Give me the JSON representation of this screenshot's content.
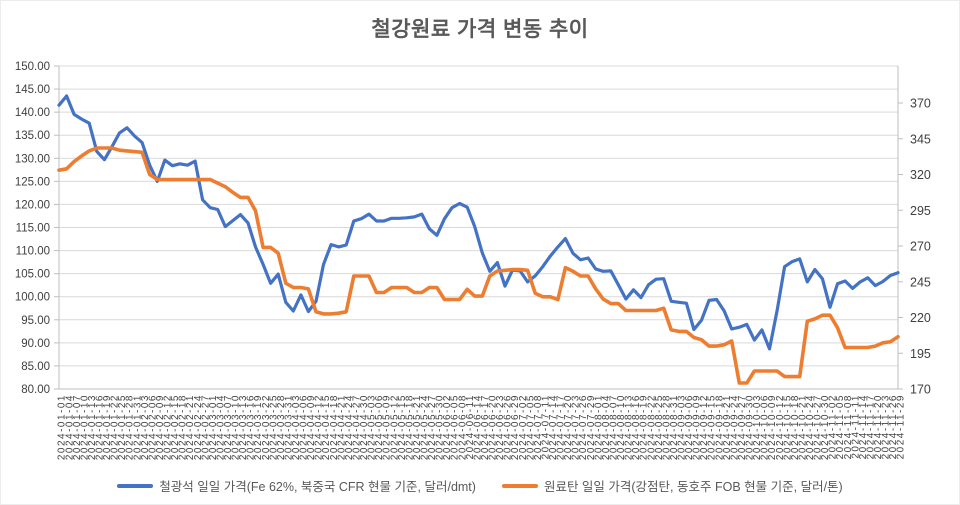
{
  "title": "철강원료 가격 변동 추이",
  "legend": [
    {
      "label": "철광석 일일 가격(Fe 62%, 북중국 CFR 현물 기준, 달러/dmt)",
      "color": "#4472C4"
    },
    {
      "label": "원료탄 일일 가격(강점탄, 동호주 FOB 현물 기준, 달러/톤)",
      "color": "#ED7D31"
    }
  ],
  "colors": {
    "iron_ore_line": "#4472C4",
    "coking_coal_line": "#ED7D31",
    "gridline": "#D9D9D9",
    "axis_line": "#BFBFBF",
    "tick_text": "#404040",
    "title_text": "#595959",
    "legend_text": "#595959"
  },
  "chart_data": {
    "type": "line",
    "title": "철강원료 가격 변동 추이",
    "grid": true,
    "legend_position": "bottom",
    "y_left": {
      "min": 80,
      "max": 150,
      "step": 5,
      "tick_labels": [
        "80.00",
        "85.00",
        "90.00",
        "95.00",
        "100.00",
        "105.00",
        "110.00",
        "115.00",
        "120.00",
        "125.00",
        "130.00",
        "135.00",
        "140.00",
        "145.00",
        "150.00"
      ]
    },
    "y_right": {
      "min": 170,
      "max": 370,
      "step": 25,
      "tick_labels": [
        "170",
        "195",
        "220",
        "245",
        "270",
        "295",
        "320",
        "345",
        "370"
      ]
    },
    "x": [
      "2024-01-01",
      "2024-01-04",
      "2024-01-07",
      "2024-01-10",
      "2024-01-13",
      "2024-01-16",
      "2024-01-19",
      "2024-01-22",
      "2024-01-25",
      "2024-01-28",
      "2024-01-31",
      "2024-02-03",
      "2024-02-06",
      "2024-02-09",
      "2024-02-12",
      "2024-02-15",
      "2024-02-18",
      "2024-02-21",
      "2024-02-24",
      "2024-02-27",
      "2024-03-01",
      "2024-03-04",
      "2024-03-07",
      "2024-03-10",
      "2024-03-13",
      "2024-03-16",
      "2024-03-19",
      "2024-03-22",
      "2024-03-25",
      "2024-03-28",
      "2024-03-31",
      "2024-04-03",
      "2024-04-06",
      "2024-04-09",
      "2024-04-12",
      "2024-04-15",
      "2024-04-18",
      "2024-04-21",
      "2024-04-24",
      "2024-04-27",
      "2024-04-30",
      "2024-05-03",
      "2024-05-06",
      "2024-05-09",
      "2024-05-12",
      "2024-05-15",
      "2024-05-18",
      "2024-05-21",
      "2024-05-24",
      "2024-05-27",
      "2024-05-30",
      "2024-06-02",
      "2024-06-05",
      "2024-06-08",
      "2024-06-11",
      "2024-06-14",
      "2024-06-17",
      "2024-06-20",
      "2024-06-23",
      "2024-06-26",
      "2024-06-29",
      "2024-07-02",
      "2024-07-05",
      "2024-07-08",
      "2024-07-11",
      "2024-07-14",
      "2024-07-17",
      "2024-07-20",
      "2024-07-23",
      "2024-07-26",
      "2024-07-29",
      "2024-08-01",
      "2024-08-04",
      "2024-08-07",
      "2024-08-10",
      "2024-08-13",
      "2024-08-16",
      "2024-08-19",
      "2024-08-22",
      "2024-08-25",
      "2024-08-28",
      "2024-08-31",
      "2024-09-03",
      "2024-09-06",
      "2024-09-09",
      "2024-09-12",
      "2024-09-15",
      "2024-09-18",
      "2024-09-21",
      "2024-09-24",
      "2024-09-27",
      "2024-09-30",
      "2024-10-03",
      "2024-10-06",
      "2024-10-09",
      "2024-10-12",
      "2024-10-15",
      "2024-10-18",
      "2024-10-21",
      "2024-10-24",
      "2024-10-27",
      "2024-10-30",
      "2024-11-02",
      "2024-11-05",
      "2024-11-08",
      "2024-11-11",
      "2024-11-14",
      "2024-11-17",
      "2024-11-20",
      "2024-11-23",
      "2024-11-26",
      "2024-11-29"
    ],
    "series": [
      {
        "name": "철광석 일일 가격(Fe 62%, 북중국 CFR 현물 기준, 달러/dmt)",
        "axis": "left",
        "color": "#4472C4",
        "values": [
          141.5,
          143.5,
          139.5,
          138.5,
          137.6,
          131.5,
          129.7,
          132.5,
          135.5,
          136.6,
          134.8,
          133.4,
          128.5,
          125.0,
          129.6,
          128.4,
          128.8,
          128.5,
          129.4,
          121.0,
          119.3,
          118.9,
          115.2,
          116.5,
          117.8,
          116.0,
          110.8,
          107.0,
          102.9,
          104.9,
          98.8,
          96.9,
          100.4,
          96.8,
          99.0,
          107.0,
          111.3,
          110.8,
          111.2,
          116.4,
          116.9,
          117.9,
          116.4,
          116.4,
          117.0,
          117.0,
          117.1,
          117.3,
          117.9,
          114.7,
          113.3,
          116.9,
          119.3,
          120.2,
          119.4,
          115.2,
          109.5,
          105.5,
          107.4,
          102.3,
          105.8,
          105.6,
          103.2,
          104.5,
          106.5,
          108.8,
          110.8,
          112.6,
          109.4,
          108.0,
          108.4,
          106.0,
          105.5,
          105.6,
          102.6,
          99.5,
          101.5,
          99.8,
          102.6,
          103.8,
          103.9,
          99.0,
          98.8,
          98.6,
          92.9,
          94.9,
          99.2,
          99.4,
          96.9,
          93.0,
          93.4,
          94.0,
          90.6,
          92.8,
          88.7,
          97.0,
          106.5,
          107.6,
          108.2,
          103.2,
          105.9,
          103.9,
          97.7,
          102.8,
          103.4,
          101.8,
          103.2,
          104.1,
          102.4,
          103.3,
          104.6,
          105.2
        ]
      },
      {
        "name": "원료탄 일일 가격(강점탄, 동호주 FOB 현물 기준, 달러/톤)",
        "axis": "right",
        "color": "#ED7D31",
        "values": [
          323,
          324,
          329,
          333,
          336.5,
          338.5,
          338.5,
          338.5,
          337,
          336.5,
          336,
          335.5,
          320,
          316.5,
          316.5,
          316.5,
          316.5,
          316.5,
          316.5,
          316.5,
          316.5,
          314,
          311.5,
          307.5,
          304,
          304,
          294.6,
          269,
          269,
          265,
          244,
          241,
          241,
          240,
          224,
          222.5,
          222.5,
          223,
          224,
          249,
          249,
          249,
          237.5,
          237.5,
          241,
          241,
          241,
          237.5,
          237.5,
          241,
          241,
          232.6,
          232.6,
          232.6,
          239.7,
          235,
          235,
          249,
          252.5,
          253,
          253.5,
          253.5,
          253,
          237,
          234.5,
          234.5,
          232.6,
          254.9,
          252.3,
          249,
          249,
          240,
          232.9,
          229.7,
          229.7,
          224.9,
          224.9,
          224.9,
          224.9,
          224.9,
          226.5,
          211.3,
          210.3,
          210.3,
          206,
          204.5,
          200,
          200,
          201,
          203.6,
          174.2,
          174.2,
          182.6,
          182.6,
          182.6,
          182.6,
          178.7,
          178.7,
          178.7,
          217.4,
          219,
          221.6,
          221.6,
          212.9,
          199,
          199,
          199,
          199,
          200,
          202.3,
          203,
          206.5
        ]
      }
    ]
  }
}
